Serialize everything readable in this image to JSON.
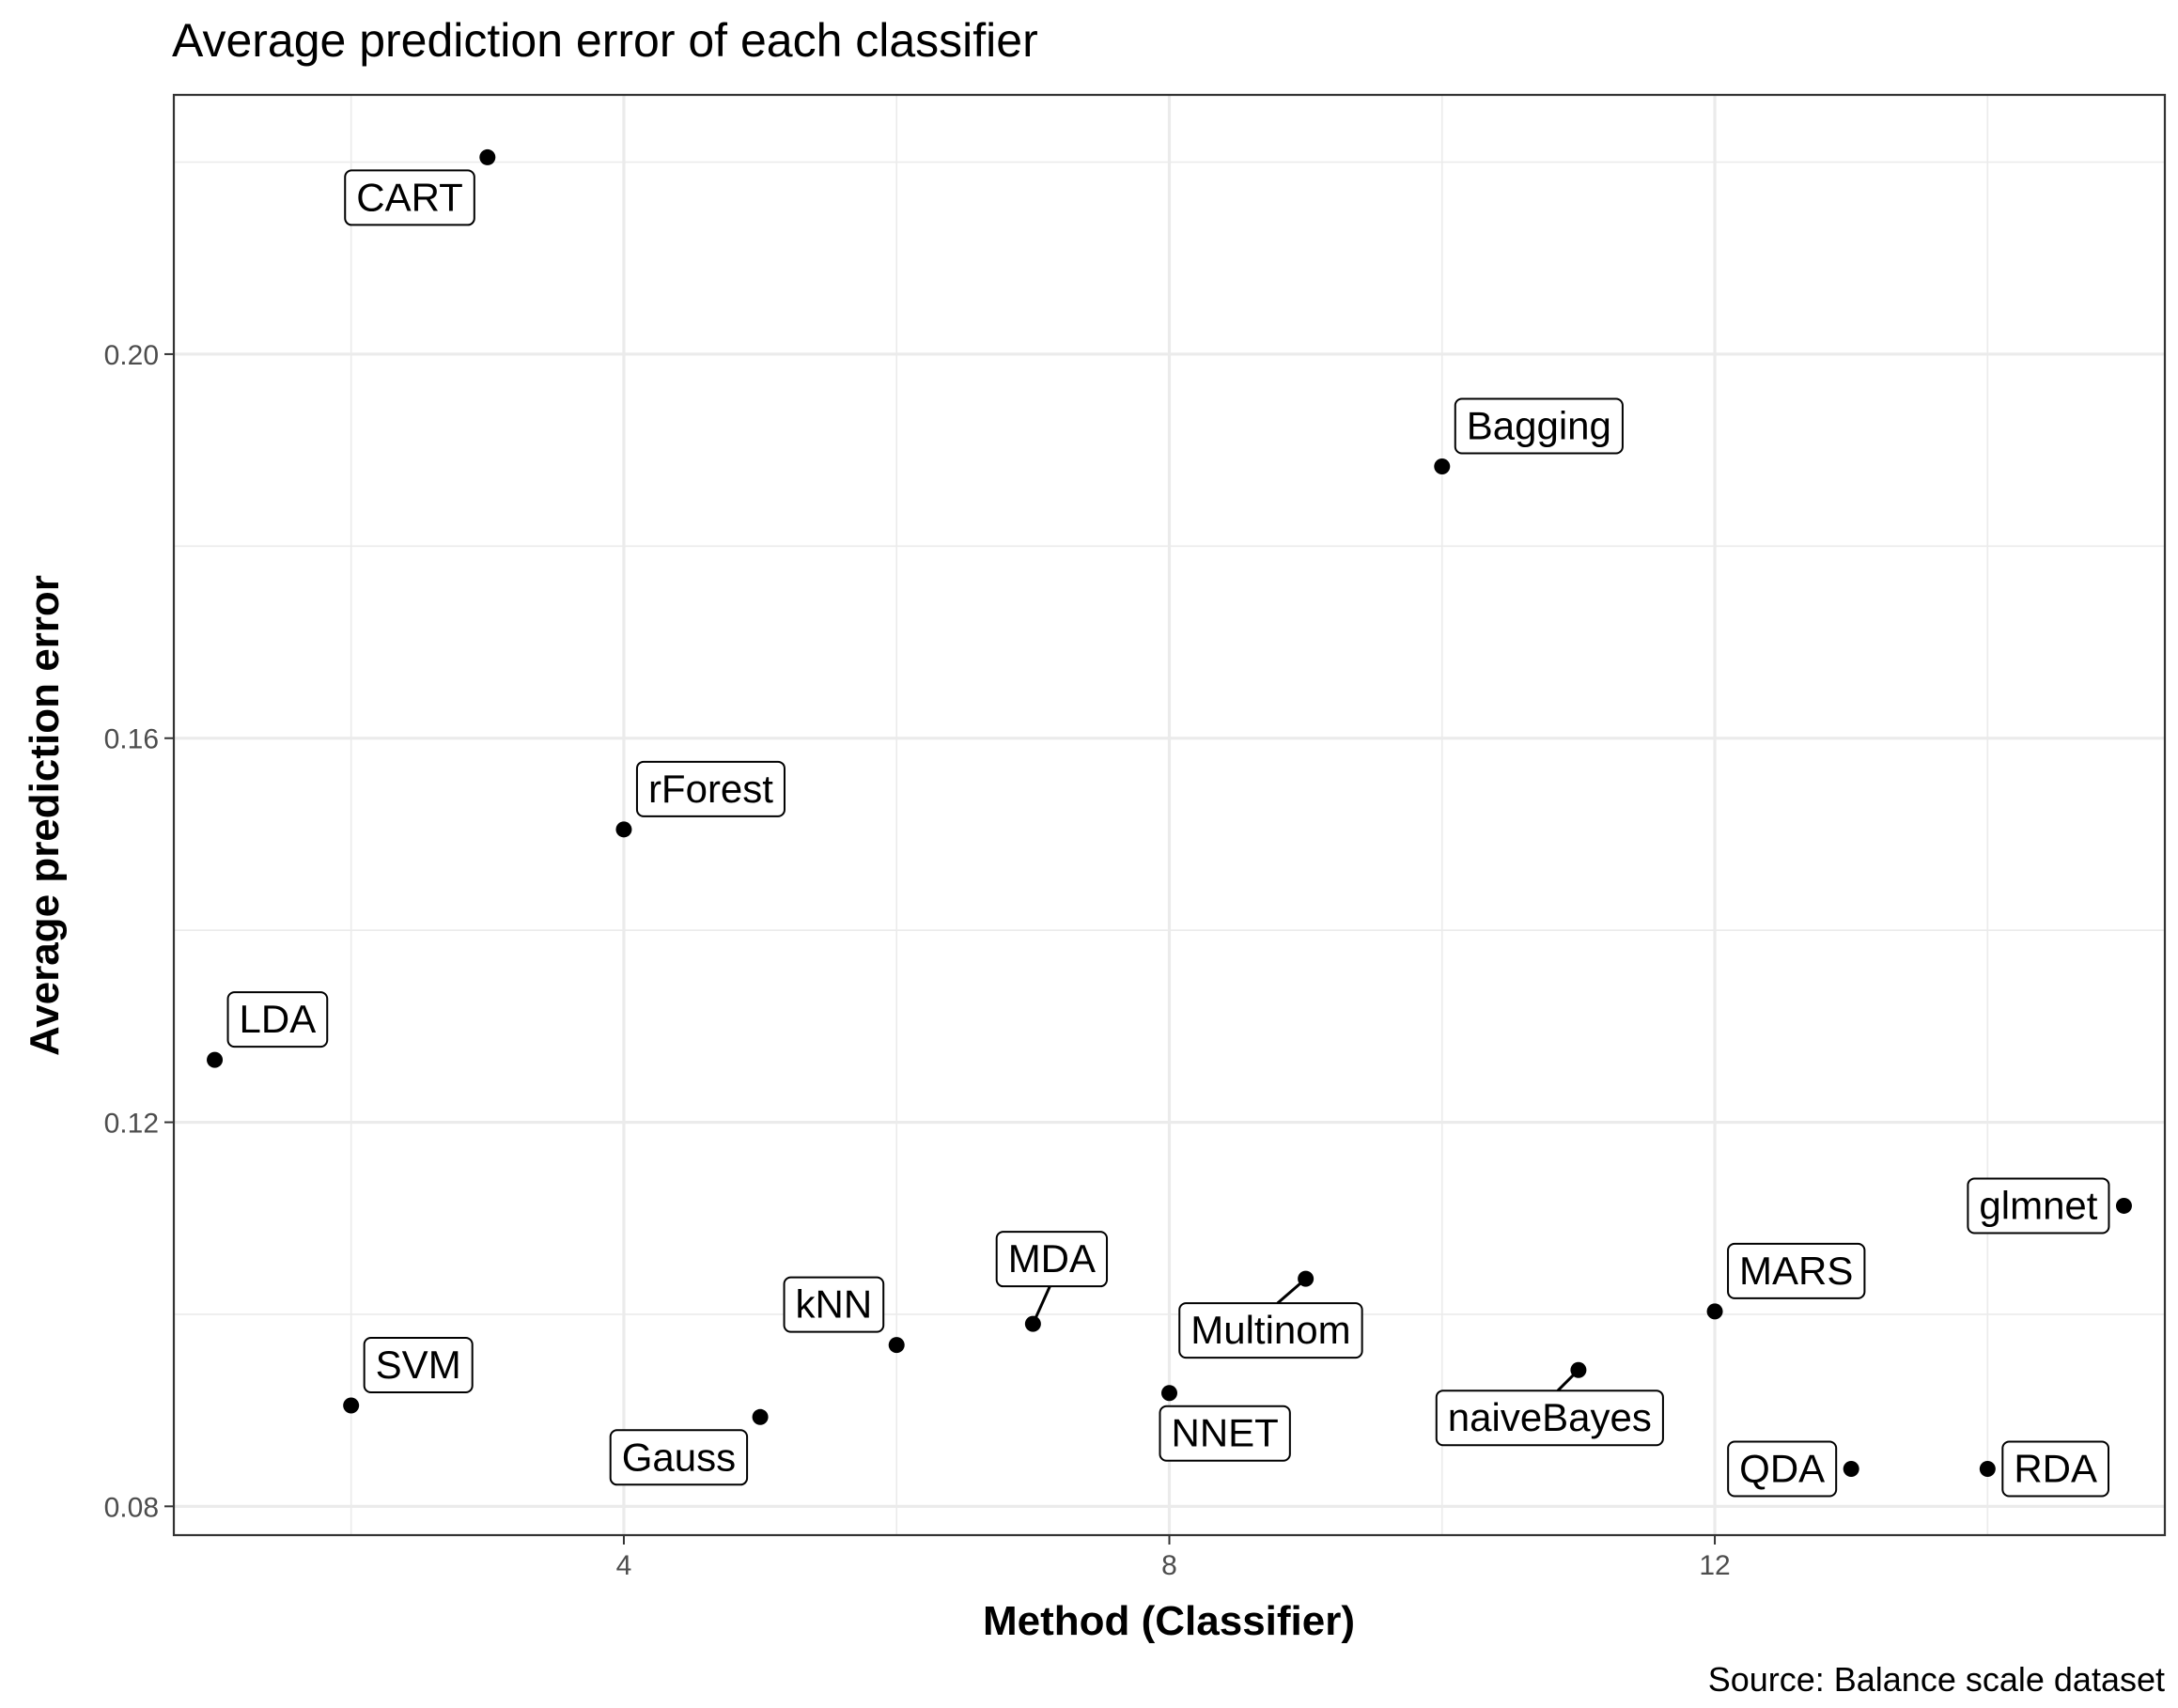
{
  "chart_data": {
    "type": "scatter",
    "title": "Average prediction error of each classifier",
    "xlabel": "Method (Classifier)",
    "ylabel": "Average prediction error",
    "caption": "Source: Balance scale dataset",
    "xlim": [
      0.7,
      15.3
    ],
    "ylim": [
      0.077,
      0.227
    ],
    "xticks": [
      4,
      8,
      12
    ],
    "xtick_labels": [
      "4",
      "8",
      "12"
    ],
    "yticks": [
      0.08,
      0.12,
      0.16,
      0.2
    ],
    "ytick_labels": [
      "0.08",
      "0.12",
      "0.16",
      "0.20"
    ],
    "grid": true,
    "points": [
      {
        "x": 1,
        "y": 0.1265,
        "label": "LDA",
        "label_pos": "upper-right"
      },
      {
        "x": 2,
        "y": 0.0905,
        "label": "SVM",
        "label_pos": "upper-right"
      },
      {
        "x": 3,
        "y": 0.2205,
        "label": "CART",
        "label_pos": "lower-left"
      },
      {
        "x": 4,
        "y": 0.1505,
        "label": "rForest",
        "label_pos": "upper-right"
      },
      {
        "x": 5,
        "y": 0.0893,
        "label": "Gauss",
        "label_pos": "lower-left"
      },
      {
        "x": 6,
        "y": 0.0968,
        "label": "kNN",
        "label_pos": "upper-left"
      },
      {
        "x": 7,
        "y": 0.099,
        "label": "MDA",
        "label_pos": "upper"
      },
      {
        "x": 8,
        "y": 0.0918,
        "label": "NNET",
        "label_pos": "lower-right"
      },
      {
        "x": 9,
        "y": 0.1037,
        "label": "Multinom",
        "label_pos": "lower-left"
      },
      {
        "x": 10,
        "y": 0.1883,
        "label": "Bagging",
        "label_pos": "upper-right"
      },
      {
        "x": 11,
        "y": 0.0942,
        "label": "naiveBayes",
        "label_pos": "lower-left"
      },
      {
        "x": 12,
        "y": 0.1003,
        "label": "MARS",
        "label_pos": "upper-right"
      },
      {
        "x": 13,
        "y": 0.0839,
        "label": "QDA",
        "label_pos": "left"
      },
      {
        "x": 14,
        "y": 0.0839,
        "label": "RDA",
        "label_pos": "right"
      },
      {
        "x": 15,
        "y": 0.1113,
        "label": "glmnet",
        "label_pos": "left"
      }
    ],
    "colors": {
      "point": "#000000",
      "grid": "#ebebeb",
      "panel_border": "#333333",
      "tick_text": "#4d4d4d"
    }
  }
}
